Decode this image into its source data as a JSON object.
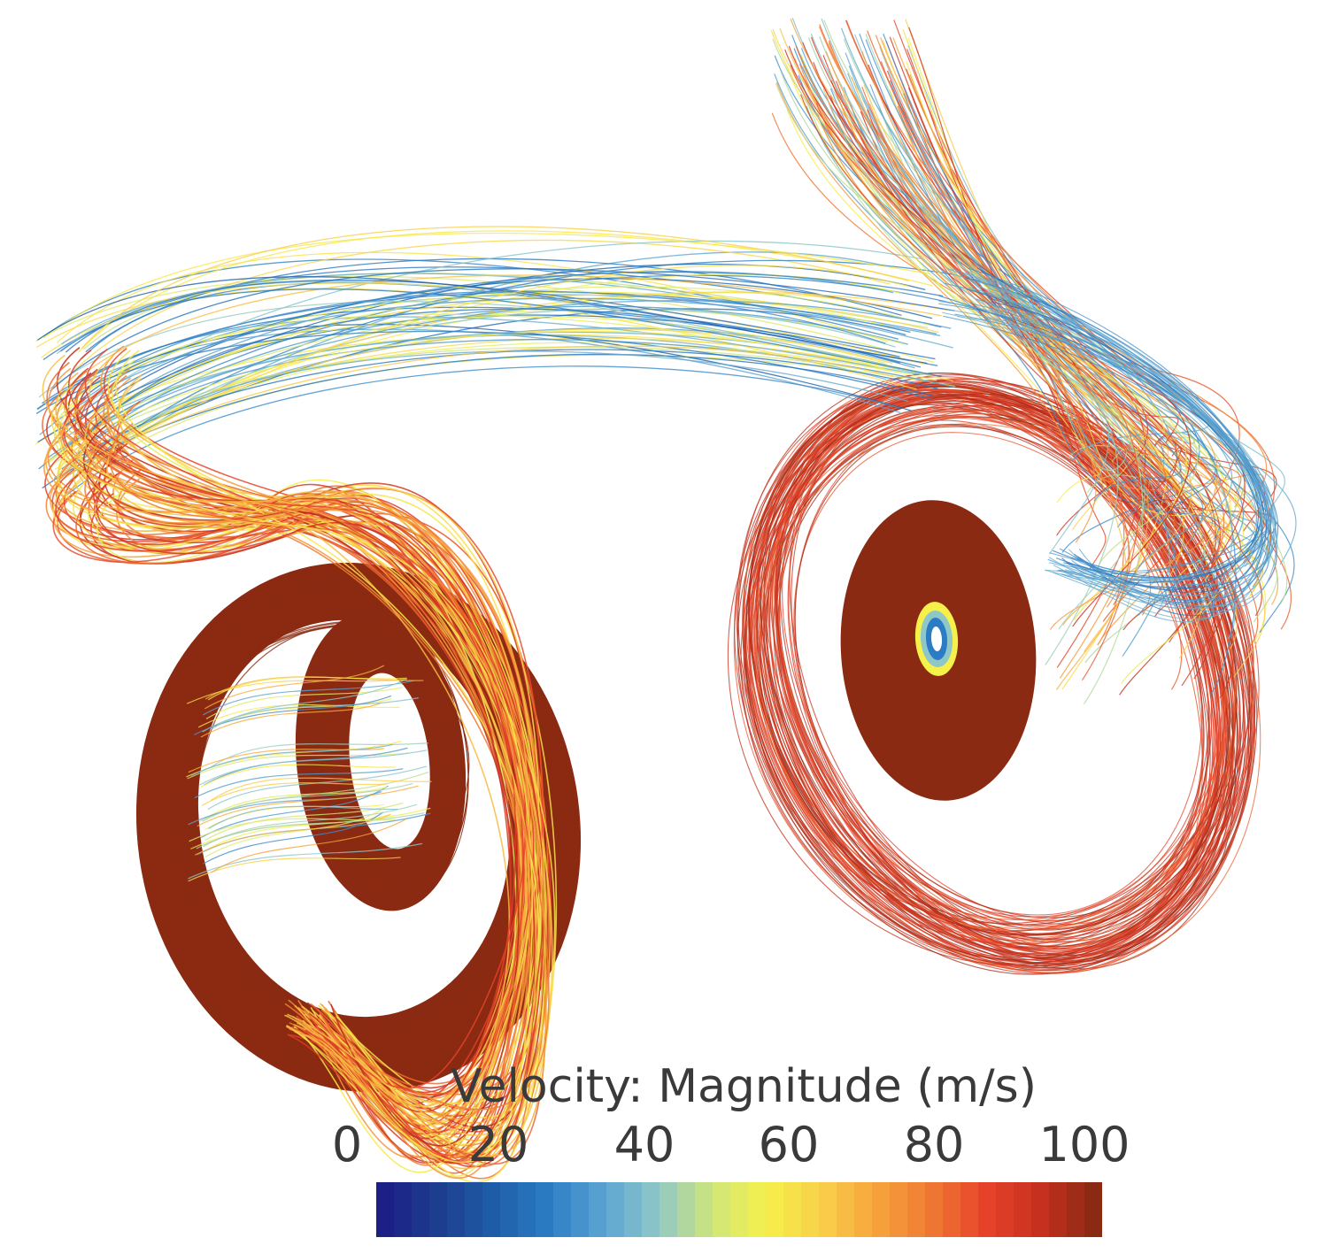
{
  "legend": {
    "title": "Velocity: Magnitude (m/s)",
    "min": 0,
    "max": 100,
    "ticks": [
      "0",
      "20",
      "40",
      "60",
      "80",
      "100"
    ],
    "colormap": [
      "#1c1f86",
      "#1d3f8f",
      "#1f5ea8",
      "#2b7cc4",
      "#5aa3d2",
      "#8fc7c8",
      "#cfe57a",
      "#f6f04a",
      "#f9d04a",
      "#f6a43c",
      "#f07a33",
      "#e6432a",
      "#c8301f",
      "#8b2a12"
    ]
  },
  "streamline_colors": {
    "slow": "#1f5ea8",
    "medium": "#f6f04a",
    "fast": "#e6432a",
    "core": "#8b2a12"
  }
}
